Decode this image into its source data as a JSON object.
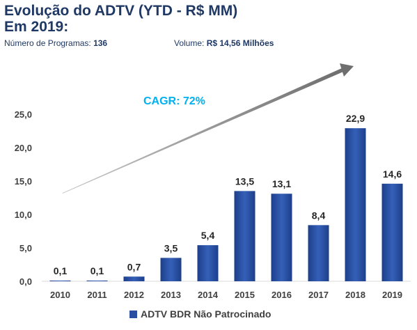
{
  "header": {
    "title_line1": "Evolução do ADTV (YTD - R$ MM)",
    "title_line2": "Em 2019:",
    "programs_label": "Número de Programas:",
    "programs_value": "136",
    "volume_label": "Volume:",
    "volume_value": "R$ 14,56 Milhões"
  },
  "colors": {
    "bar": "#2a4ea0",
    "title": "#1f3864",
    "cagr": "#00b0f0"
  },
  "chart_data": {
    "type": "bar",
    "categories": [
      "2010",
      "2011",
      "2012",
      "2013",
      "2014",
      "2015",
      "2016",
      "2017",
      "2018",
      "2019"
    ],
    "series": [
      {
        "name": "ADTV BDR Não Patrocinado",
        "values": [
          0.1,
          0.1,
          0.7,
          3.5,
          5.4,
          13.5,
          13.1,
          8.4,
          22.9,
          14.6
        ]
      }
    ],
    "value_labels": [
      "0,1",
      "0,1",
      "0,7",
      "3,5",
      "5,4",
      "13,5",
      "13,1",
      "8,4",
      "22,9",
      "14,6"
    ],
    "y_ticks": [
      "0,0",
      "5,0",
      "10,0",
      "15,0",
      "20,0",
      "25,0"
    ],
    "ylim": [
      0,
      25
    ],
    "grid": false,
    "legend_position": "bottom",
    "annotation": "CAGR: 72%"
  }
}
